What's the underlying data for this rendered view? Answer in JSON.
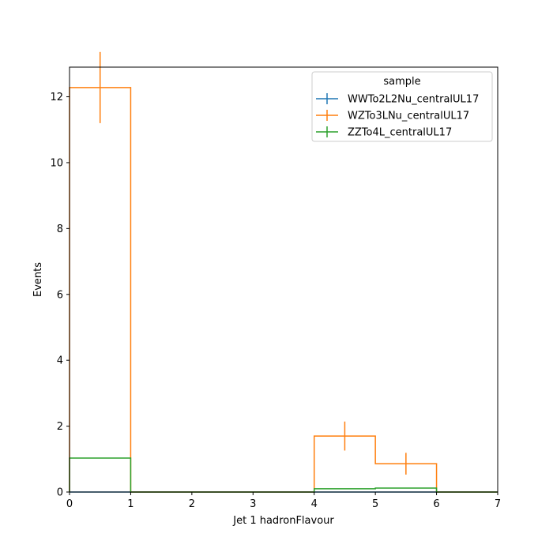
{
  "chart_data": {
    "type": "histogram",
    "title": "",
    "xlabel": "Jet 1 hadronFlavour",
    "ylabel": "Events",
    "xlim": [
      0,
      7
    ],
    "ylim": [
      0,
      12.9
    ],
    "x_ticks": [
      "0",
      "1",
      "2",
      "3",
      "4",
      "5",
      "6",
      "7"
    ],
    "y_ticks": [
      "0",
      "2",
      "4",
      "6",
      "8",
      "10",
      "12"
    ],
    "bin_edges": [
      0,
      1,
      2,
      3,
      4,
      5,
      6,
      7
    ],
    "grid": false,
    "legend": {
      "title": "sample",
      "position": "top-right"
    },
    "series": [
      {
        "name": "WWTo2L2Nu_centralUL17",
        "color": "#1f77b4",
        "values": [
          0,
          0,
          0,
          0,
          0,
          0,
          0
        ],
        "errors": [
          0,
          0,
          0,
          0,
          0,
          0,
          0
        ]
      },
      {
        "name": "WZTo3LNu_centralUL17",
        "color": "#ff7f0e",
        "values": [
          12.28,
          0,
          0,
          0,
          1.7,
          0.86,
          0
        ],
        "errors": [
          1.08,
          0,
          0,
          0,
          0.44,
          0.33,
          0
        ]
      },
      {
        "name": "ZZTo4L_centralUL17",
        "color": "#2ca02c",
        "values": [
          1.03,
          0,
          0,
          0,
          0.1,
          0.12,
          0
        ],
        "errors": [
          0,
          0,
          0,
          0,
          0,
          0,
          0
        ]
      }
    ]
  }
}
